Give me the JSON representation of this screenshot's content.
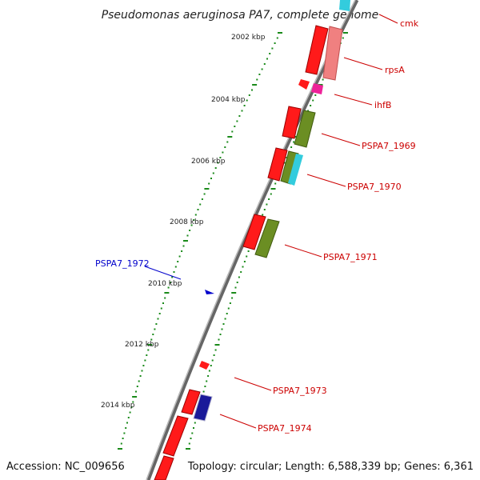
{
  "title": "Pseudomonas aeruginosa PA7, complete genome",
  "footer": {
    "accession": "Accession: NC_009656",
    "summary": "Topology: circular; Length: 6,588,339 bp; Genes: 6,361"
  },
  "scale_ticks": [
    "2002 kbp",
    "2004 kbp",
    "2006 kbp",
    "2008 kbp",
    "2010 kbp",
    "2012 kbp",
    "2014 kbp"
  ],
  "gene_labels": [
    {
      "name": "cmk",
      "color": "#cc0000"
    },
    {
      "name": "rpsA",
      "color": "#cc0000"
    },
    {
      "name": "ihfB",
      "color": "#cc0000"
    },
    {
      "name": "PSPA7_1969",
      "color": "#cc0000"
    },
    {
      "name": "PSPA7_1970",
      "color": "#cc0000"
    },
    {
      "name": "PSPA7_1971",
      "color": "#cc0000"
    },
    {
      "name": "PSPA7_1972",
      "color": "#0000cc"
    },
    {
      "name": "PSPA7_1973",
      "color": "#cc0000"
    },
    {
      "name": "PSPA7_1974",
      "color": "#cc0000"
    }
  ],
  "colors": {
    "backbone": "#888888",
    "gene_red": "#ff1a1a",
    "gene_pink": "#f08080",
    "gene_cyan": "#33ccdd",
    "gene_magenta": "#ee2299",
    "gene_olive": "#6b8e23",
    "gene_navy": "#1a1a99",
    "tick_green": "#1a8a1a"
  }
}
